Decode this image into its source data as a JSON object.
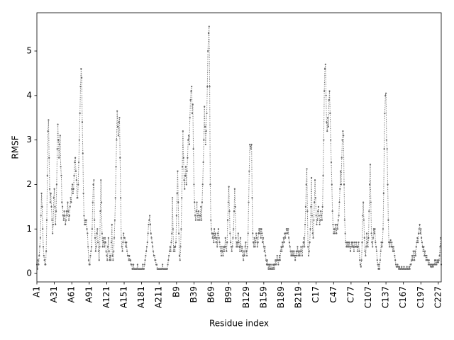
{
  "chart_data": {
    "type": "line",
    "xlabel": "Residue index",
    "ylabel": "RMSF",
    "color": "#666666",
    "line_style": "dotted",
    "markers": true,
    "grid": false,
    "ylim": [
      -0.19,
      5.86
    ],
    "yticks": [
      0,
      1,
      2,
      3,
      4,
      5
    ],
    "categories": [
      "A1",
      null,
      null,
      null,
      null,
      null,
      null,
      null,
      null,
      null,
      null,
      null,
      null,
      null,
      null,
      null,
      null,
      null,
      null,
      null,
      null,
      null,
      null,
      null,
      null,
      null,
      null,
      null,
      null,
      null,
      "A31",
      null,
      null,
      null,
      null,
      null,
      null,
      null,
      null,
      null,
      null,
      null,
      null,
      null,
      null,
      null,
      null,
      null,
      null,
      null,
      null,
      null,
      null,
      null,
      null,
      null,
      null,
      null,
      null,
      null,
      "A61",
      null,
      null,
      null,
      null,
      null,
      null,
      null,
      null,
      null,
      null,
      null,
      null,
      null,
      null,
      null,
      null,
      null,
      null,
      null,
      null,
      null,
      null,
      null,
      null,
      null,
      null,
      null,
      null,
      null,
      "A91",
      null,
      null,
      null,
      null,
      null,
      null,
      null,
      null,
      null,
      null,
      null,
      null,
      null,
      null,
      null,
      null,
      null,
      null,
      null,
      null,
      null,
      null,
      null,
      null,
      null,
      null,
      null,
      null,
      null,
      "A121",
      null,
      null,
      null,
      null,
      null,
      null,
      null,
      null,
      null,
      null,
      null,
      null,
      null,
      null,
      null,
      null,
      null,
      null,
      null,
      null,
      null,
      null,
      null,
      null,
      null,
      null,
      null,
      null,
      null,
      "A151",
      null,
      null,
      null,
      null,
      null,
      null,
      null,
      null,
      null,
      null,
      null,
      null,
      null,
      null,
      null,
      null,
      null,
      null,
      null,
      null,
      null,
      null,
      null,
      null,
      null,
      null,
      null,
      null,
      null,
      "A181",
      null,
      null,
      null,
      null,
      null,
      null,
      null,
      null,
      null,
      null,
      null,
      null,
      null,
      null,
      null,
      null,
      null,
      null,
      null,
      null,
      null,
      null,
      null,
      null,
      null,
      null,
      null,
      null,
      null,
      "A211",
      null,
      null,
      null,
      null,
      null,
      null,
      null,
      null,
      null,
      null,
      null,
      null,
      null,
      null,
      null,
      null,
      null,
      null,
      null,
      null,
      null,
      null,
      null,
      null,
      null,
      null,
      null,
      null,
      null,
      "B9",
      null,
      null,
      null,
      null,
      null,
      null,
      null,
      null,
      null,
      null,
      null,
      null,
      null,
      null,
      null,
      null,
      null,
      null,
      null,
      null,
      null,
      null,
      null,
      null,
      null,
      null,
      null,
      null,
      null,
      "B39",
      null,
      null,
      null,
      null,
      null,
      null,
      null,
      null,
      null,
      null,
      null,
      null,
      null,
      null,
      null,
      null,
      null,
      null,
      null,
      null,
      null,
      null,
      null,
      null,
      null,
      null,
      null,
      null,
      null,
      "B69",
      null,
      null,
      null,
      null,
      null,
      null,
      null,
      null,
      null,
      null,
      null,
      null,
      null,
      null,
      null,
      null,
      null,
      null,
      null,
      null,
      null,
      null,
      null,
      null,
      null,
      null,
      null,
      null,
      null,
      "B99",
      null,
      null,
      null,
      null,
      null,
      null,
      null,
      null,
      null,
      null,
      null,
      null,
      null,
      null,
      null,
      null,
      null,
      null,
      null,
      null,
      null,
      null,
      null,
      null,
      null,
      null,
      null,
      null,
      null,
      "B129",
      null,
      null,
      null,
      null,
      null,
      null,
      null,
      null,
      null,
      null,
      null,
      null,
      null,
      null,
      null,
      null,
      null,
      null,
      null,
      null,
      null,
      null,
      null,
      null,
      null,
      null,
      null,
      null,
      null,
      "B159",
      null,
      null,
      null,
      null,
      null,
      null,
      null,
      null,
      null,
      null,
      null,
      null,
      null,
      null,
      null,
      null,
      null,
      null,
      null,
      null,
      null,
      null,
      null,
      null,
      null,
      null,
      null,
      null,
      null,
      "B189",
      null,
      null,
      null,
      null,
      null,
      null,
      null,
      null,
      null,
      null,
      null,
      null,
      null,
      null,
      null,
      null,
      null,
      null,
      null,
      null,
      null,
      null,
      null,
      null,
      null,
      null,
      null,
      null,
      null,
      "B219",
      null,
      null,
      null,
      null,
      null,
      null,
      null,
      null,
      null,
      null,
      null,
      null,
      null,
      null,
      null,
      null,
      null,
      null,
      null,
      null,
      null,
      null,
      null,
      null,
      null,
      null,
      null,
      null,
      null,
      "C17",
      null,
      null,
      null,
      null,
      null,
      null,
      null,
      null,
      null,
      null,
      null,
      null,
      null,
      null,
      null,
      null,
      null,
      null,
      null,
      null,
      null,
      null,
      null,
      null,
      null,
      null,
      null,
      null,
      null,
      "C47",
      null,
      null,
      null,
      null,
      null,
      null,
      null,
      null,
      null,
      null,
      null,
      null,
      null,
      null,
      null,
      null,
      null,
      null,
      null,
      null,
      null,
      null,
      null,
      null,
      null,
      null,
      null,
      null,
      null,
      "C77",
      null,
      null,
      null,
      null,
      null,
      null,
      null,
      null,
      null,
      null,
      null,
      null,
      null,
      null,
      null,
      null,
      null,
      null,
      null,
      null,
      null,
      null,
      null,
      null,
      null,
      null,
      null,
      null,
      null,
      "C107",
      null,
      null,
      null,
      null,
      null,
      null,
      null,
      null,
      null,
      null,
      null,
      null,
      null,
      null,
      null,
      null,
      null,
      null,
      null,
      null,
      null,
      null,
      null,
      null,
      null,
      null,
      null,
      null,
      null,
      "C137",
      null,
      null,
      null,
      null,
      null,
      null,
      null,
      null,
      null,
      null,
      null,
      null,
      null,
      null,
      null,
      null,
      null,
      null,
      null,
      null,
      null,
      null,
      null,
      null,
      null,
      null,
      null,
      null,
      null,
      "C167",
      null,
      null,
      null,
      null,
      null,
      null,
      null,
      null,
      null,
      null,
      null,
      null,
      null,
      null,
      null,
      null,
      null,
      null,
      null,
      null,
      null,
      null,
      null,
      null,
      null,
      null,
      null,
      null,
      null,
      "C197",
      null,
      null,
      null,
      null,
      null,
      null,
      null,
      null,
      null,
      null,
      null,
      null,
      null,
      null,
      null,
      null,
      null,
      null,
      null,
      null,
      null,
      null,
      null,
      null,
      null,
      null,
      null,
      null,
      null,
      "C227",
      null,
      null,
      null,
      null,
      null
    ],
    "values": [
      0.2,
      0.1,
      0.3,
      0.2,
      0.4,
      0.6,
      0.8,
      1.3,
      1.8,
      1.5,
      1.0,
      0.6,
      0.4,
      0.3,
      0.2,
      0.2,
      0.5,
      1.2,
      2.2,
      3.2,
      3.45,
      2.6,
      1.9,
      1.6,
      1.8,
      1.5,
      1.2,
      0.9,
      1.1,
      1.7,
      1.9,
      1.5,
      1.1,
      1.4,
      2.0,
      2.8,
      3.35,
      3.0,
      2.6,
      2.9,
      3.1,
      2.4,
      2.2,
      1.6,
      1.5,
      1.3,
      1.2,
      1.4,
      1.3,
      1.1,
      1.2,
      1.4,
      1.3,
      1.6,
      1.4,
      1.2,
      1.3,
      1.5,
      1.7,
      1.6,
      1.9,
      2.0,
      1.8,
      1.9,
      2.2,
      2.5,
      2.6,
      2.3,
      2.1,
      1.7,
      1.7,
      2.0,
      2.5,
      3.0,
      3.6,
      4.2,
      4.6,
      4.4,
      3.4,
      2.7,
      1.8,
      1.3,
      1.1,
      1.2,
      1.1,
      1.2,
      1.0,
      0.9,
      0.6,
      0.3,
      0.2,
      0.2,
      0.4,
      0.5,
      0.6,
      1.0,
      1.6,
      2.0,
      2.1,
      1.2,
      0.8,
      0.5,
      0.6,
      0.9,
      1.0,
      0.7,
      0.5,
      0.3,
      0.6,
      1.4,
      2.1,
      1.6,
      0.9,
      0.6,
      0.8,
      0.7,
      0.6,
      0.8,
      0.7,
      0.5,
      0.4,
      0.3,
      0.6,
      0.8,
      0.5,
      0.3,
      0.4,
      0.3,
      0.7,
      1.1,
      0.4,
      0.3,
      0.5,
      0.8,
      1.2,
      1.7,
      2.4,
      3.0,
      3.65,
      3.3,
      3.1,
      3.4,
      3.5,
      2.6,
      1.7,
      0.8,
      0.6,
      0.5,
      0.7,
      0.9,
      0.8,
      0.8,
      0.7,
      0.6,
      0.7,
      0.5,
      0.4,
      0.4,
      0.3,
      0.4,
      0.3,
      0.3,
      0.2,
      0.2,
      0.1,
      0.1,
      0.2,
      0.1,
      0.1,
      0.1,
      0.1,
      0.1,
      0.1,
      0.2,
      0.1,
      0.1,
      0.1,
      0.1,
      0.1,
      0.1,
      0.1,
      0.1,
      0.2,
      0.1,
      0.1,
      0.2,
      0.3,
      0.4,
      0.5,
      0.6,
      0.7,
      0.9,
      1.1,
      1.2,
      1.3,
      1.1,
      0.9,
      0.8,
      0.7,
      0.6,
      0.5,
      0.4,
      0.4,
      0.3,
      0.3,
      0.2,
      0.2,
      0.1,
      0.1,
      0.1,
      0.1,
      0.1,
      0.1,
      0.1,
      0.1,
      0.1,
      0.2,
      0.1,
      0.1,
      0.1,
      0.1,
      0.1,
      0.1,
      0.1,
      0.1,
      0.2,
      0.3,
      0.4,
      0.5,
      0.6,
      0.5,
      0.7,
      0.9,
      1.7,
      1.0,
      0.5,
      0.6,
      0.5,
      0.6,
      0.7,
      1.3,
      1.8,
      2.3,
      1.6,
      0.9,
      0.4,
      0.3,
      0.6,
      1.0,
      1.7,
      2.4,
      3.2,
      2.6,
      2.1,
      1.9,
      2.2,
      2.4,
      2.0,
      2.3,
      2.6,
      3.0,
      3.1,
      2.9,
      3.5,
      3.9,
      4.1,
      4.2,
      3.6,
      3.8,
      2.8,
      2.0,
      1.6,
      1.3,
      1.2,
      1.4,
      1.6,
      1.3,
      1.2,
      1.4,
      1.3,
      1.2,
      1.3,
      1.5,
      1.2,
      1.6,
      2.0,
      2.5,
      3.0,
      3.75,
      3.3,
      2.9,
      3.2,
      3.6,
      4.2,
      5.0,
      5.4,
      5.55,
      4.2,
      2.0,
      1.2,
      1.0,
      0.9,
      0.8,
      0.9,
      0.7,
      1.0,
      0.8,
      0.9,
      0.7,
      0.8,
      0.6,
      0.9,
      1.0,
      0.8,
      0.7,
      0.6,
      0.5,
      0.4,
      0.6,
      0.5,
      0.4,
      0.6,
      0.5,
      0.6,
      0.8,
      0.6,
      0.5,
      0.7,
      1.2,
      1.6,
      1.95,
      1.4,
      0.9,
      0.7,
      0.6,
      0.5,
      0.6,
      0.8,
      1.0,
      1.4,
      1.9,
      1.5,
      0.8,
      0.6,
      0.7,
      0.6,
      0.9,
      0.7,
      0.6,
      0.5,
      0.8,
      0.6,
      0.5,
      0.6,
      0.4,
      0.3,
      0.5,
      0.4,
      0.6,
      0.7,
      0.5,
      0.4,
      0.6,
      0.9,
      1.6,
      2.3,
      2.9,
      2.85,
      2.8,
      2.9,
      1.7,
      0.9,
      0.7,
      0.6,
      0.8,
      0.6,
      0.7,
      0.9,
      0.8,
      0.6,
      0.7,
      0.9,
      1.0,
      0.9,
      1.0,
      0.8,
      1.0,
      0.9,
      0.7,
      0.8,
      0.6,
      0.5,
      0.6,
      0.4,
      0.3,
      0.2,
      0.3,
      0.2,
      0.1,
      0.2,
      0.1,
      0.2,
      0.1,
      0.1,
      0.2,
      0.1,
      0.1,
      0.2,
      0.1,
      0.2,
      0.3,
      0.2,
      0.3,
      0.4,
      0.3,
      0.2,
      0.3,
      0.4,
      0.3,
      0.5,
      0.6,
      0.5,
      0.7,
      0.6,
      0.8,
      0.7,
      0.9,
      0.8,
      0.9,
      1.0,
      1.0,
      0.9,
      1.0,
      0.8,
      0.7,
      0.6,
      0.5,
      0.4,
      0.5,
      0.4,
      0.5,
      0.4,
      0.5,
      0.4,
      0.3,
      0.4,
      0.5,
      0.4,
      0.6,
      0.5,
      0.4,
      0.5,
      0.4,
      0.5,
      0.6,
      0.5,
      0.4,
      0.6,
      0.7,
      0.8,
      0.6,
      1.1,
      1.5,
      2.0,
      2.35,
      1.4,
      0.6,
      0.4,
      0.5,
      0.7,
      1.0,
      1.5,
      2.15,
      1.3,
      0.9,
      0.8,
      1.2,
      1.6,
      2.1,
      1.7,
      1.3,
      1.1,
      1.2,
      1.4,
      1.5,
      1.3,
      1.1,
      1.2,
      1.4,
      1.3,
      1.2,
      1.5,
      2.2,
      3.0,
      4.1,
      4.6,
      4.7,
      4.0,
      3.4,
      3.2,
      3.5,
      3.3,
      3.9,
      4.1,
      3.6,
      3.0,
      2.5,
      2.0,
      1.4,
      1.1,
      0.9,
      1.0,
      0.9,
      1.1,
      1.0,
      0.9,
      1.1,
      1.0,
      1.2,
      1.3,
      1.6,
      1.9,
      2.3,
      2.0,
      2.6,
      3.0,
      3.2,
      3.1,
      2.0,
      1.2,
      0.9,
      0.7,
      0.6,
      0.7,
      0.6,
      0.7,
      0.6,
      0.7,
      0.6,
      0.5,
      0.6,
      0.7,
      0.6,
      0.7,
      0.6,
      0.5,
      0.7,
      0.6,
      0.6,
      0.7,
      0.6,
      0.5,
      0.6,
      0.7,
      0.5,
      0.3,
      0.2,
      0.15,
      0.3,
      0.7,
      1.3,
      1.6,
      1.2,
      0.8,
      0.5,
      0.4,
      0.6,
      0.9,
      0.7,
      0.6,
      0.8,
      1.4,
      2.0,
      2.45,
      1.6,
      0.9,
      0.7,
      0.6,
      0.8,
      1.0,
      0.9,
      1.0,
      0.7,
      0.6,
      0.5,
      0.3,
      0.2,
      0.1,
      0.2,
      0.1,
      0.3,
      0.5,
      0.7,
      0.6,
      0.7,
      1.0,
      1.8,
      2.8,
      3.6,
      4.0,
      4.05,
      3.0,
      2.8,
      2.0,
      1.2,
      0.7,
      0.6,
      0.7,
      0.75,
      0.6,
      0.7,
      0.6,
      0.5,
      0.6,
      0.5,
      0.4,
      0.3,
      0.2,
      0.15,
      0.15,
      0.2,
      0.15,
      0.1,
      0.15,
      0.1,
      0.1,
      0.1,
      0.15,
      0.1,
      0.1,
      0.1,
      0.15,
      0.1,
      0.1,
      0.1,
      0.1,
      0.15,
      0.1,
      0.1,
      0.1,
      0.15,
      0.1,
      0.2,
      0.2,
      0.3,
      0.4,
      0.3,
      0.5,
      0.4,
      0.3,
      0.5,
      0.4,
      0.6,
      0.7,
      0.8,
      0.7,
      0.9,
      1.0,
      1.1,
      0.9,
      1.0,
      0.8,
      0.7,
      0.6,
      0.5,
      0.6,
      0.4,
      0.5,
      0.4,
      0.3,
      0.4,
      0.3,
      0.3,
      0.2,
      0.3,
      0.2,
      0.2,
      0.15,
      0.2,
      0.15,
      0.2,
      0.15,
      0.2,
      0.2,
      0.3,
      0.2,
      0.3,
      0.2,
      0.25,
      0.3,
      0.25,
      0.3,
      0.4,
      0.6,
      0.8,
      0.2
    ]
  }
}
